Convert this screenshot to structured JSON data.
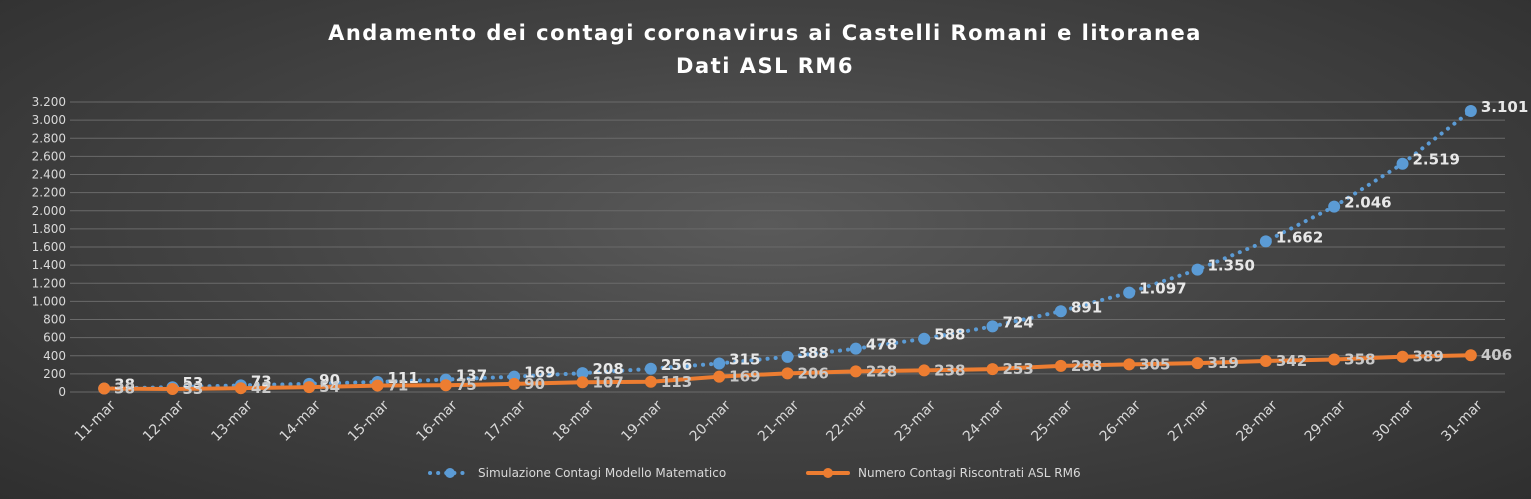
{
  "chart_data": {
    "type": "line",
    "title": "Andamento dei contagi coronavirus ai Castelli Romani e litoranea",
    "subtitle": "Dati ASL RM6",
    "categories": [
      "11-mar",
      "12-mar",
      "13-mar",
      "14-mar",
      "15-mar",
      "16-mar",
      "17-mar",
      "18-mar",
      "19-mar",
      "20-mar",
      "21-mar",
      "22-mar",
      "23-mar",
      "24-mar",
      "25-mar",
      "26-mar",
      "27-mar",
      "28-mar",
      "29-mar",
      "30-mar",
      "31-mar"
    ],
    "ylim": [
      0,
      3200
    ],
    "yticks": [
      0,
      200,
      400,
      600,
      800,
      1000,
      1200,
      1400,
      1600,
      1800,
      2000,
      2200,
      2400,
      2600,
      2800,
      3000,
      3200
    ],
    "ytick_labels": [
      "0",
      "200",
      "400",
      "600",
      "800",
      "1.000",
      "1.200",
      "1.400",
      "1.600",
      "1.800",
      "2.000",
      "2.200",
      "2.400",
      "2.600",
      "2.800",
      "3.000",
      "3.200"
    ],
    "grid": true,
    "legend_position": "bottom",
    "series": [
      {
        "name": "Simulazione Contagi Modello Matematico",
        "color": "#5b9bd5",
        "style": "dotted",
        "values": [
          38,
          53,
          73,
          90,
          111,
          137,
          169,
          208,
          256,
          315,
          388,
          478,
          588,
          724,
          891,
          1097,
          1350,
          1662,
          2046,
          2519,
          3101
        ],
        "labels": [
          "38",
          "53",
          "73",
          "90",
          "111",
          "137",
          "169",
          "208",
          "256",
          "315",
          "388",
          "478",
          "588",
          "724",
          "891",
          "1.097",
          "1.350",
          "1.662",
          "2.046",
          "2.519",
          "3.101"
        ]
      },
      {
        "name": "Numero Contagi Riscontrati ASL RM6",
        "color": "#ed7d31",
        "style": "solid",
        "values": [
          38,
          33,
          42,
          54,
          71,
          75,
          90,
          107,
          113,
          169,
          206,
          228,
          238,
          253,
          288,
          305,
          319,
          342,
          358,
          389,
          406
        ],
        "labels": [
          "38",
          "33",
          "42",
          "54",
          "71",
          "75",
          "90",
          "107",
          "113",
          "169",
          "206",
          "228",
          "238",
          "253",
          "288",
          "305",
          "319",
          "342",
          "358",
          "389",
          "406"
        ]
      }
    ]
  }
}
